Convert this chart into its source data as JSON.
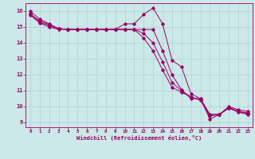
{
  "xlabel": "Windchill (Refroidissement éolien,°C)",
  "background_color": "#cce8e8",
  "grid_color": "#aad4d4",
  "line_color_hex": "#990066",
  "x_ticks": [
    0,
    1,
    2,
    3,
    4,
    5,
    6,
    7,
    8,
    9,
    10,
    11,
    12,
    13,
    14,
    15,
    16,
    17,
    18,
    19,
    20,
    21,
    22,
    23
  ],
  "ylim": [
    8.7,
    16.5
  ],
  "xlim": [
    -0.5,
    23.5
  ],
  "yticks": [
    9,
    10,
    11,
    12,
    13,
    14,
    15,
    16
  ],
  "series": [
    [
      16.0,
      15.5,
      15.2,
      14.9,
      14.85,
      14.85,
      14.85,
      14.85,
      14.85,
      14.85,
      15.2,
      15.2,
      15.8,
      16.2,
      15.2,
      12.9,
      12.5,
      10.8,
      10.5,
      9.2,
      9.5,
      10.0,
      9.8,
      9.7
    ],
    [
      15.8,
      15.4,
      15.15,
      14.9,
      14.85,
      14.85,
      14.85,
      14.85,
      14.85,
      14.85,
      14.85,
      14.85,
      14.85,
      14.85,
      13.5,
      12.0,
      11.05,
      10.5,
      10.5,
      9.5,
      9.5,
      9.9,
      9.7,
      9.6
    ],
    [
      15.85,
      15.3,
      15.1,
      14.9,
      14.85,
      14.85,
      14.85,
      14.85,
      14.85,
      14.85,
      14.85,
      14.85,
      14.6,
      14.0,
      12.8,
      11.5,
      11.0,
      10.6,
      10.4,
      9.4,
      9.5,
      9.95,
      9.7,
      9.55
    ],
    [
      15.75,
      15.25,
      15.0,
      14.85,
      14.85,
      14.85,
      14.85,
      14.85,
      14.85,
      14.85,
      14.85,
      14.85,
      14.3,
      13.5,
      12.3,
      11.2,
      10.9,
      10.6,
      10.4,
      9.5,
      9.5,
      9.9,
      9.65,
      9.5
    ]
  ]
}
